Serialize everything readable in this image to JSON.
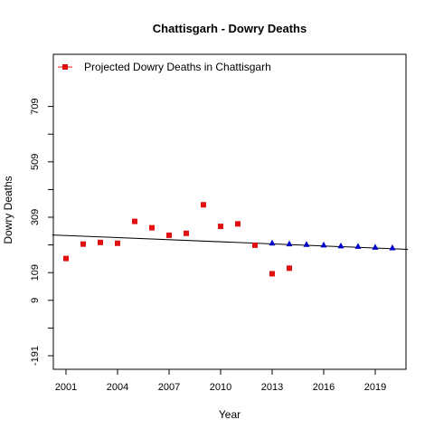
{
  "chart_data": {
    "type": "scatter",
    "title": "Chattisgarh  -  Dowry Deaths",
    "xlabel": "Year",
    "ylabel": "Dowry Deaths",
    "x_ticks": [
      2001,
      2004,
      2007,
      2010,
      2013,
      2016,
      2019
    ],
    "y_ticks": [
      -191,
      9,
      109,
      309,
      509,
      709
    ],
    "y_minor_ticks": [
      -91,
      209,
      409,
      609
    ],
    "xlim": [
      2001,
      2020
    ],
    "ylim": [
      -191,
      809
    ],
    "grid": false,
    "legend_position": "top-left",
    "series": [
      {
        "name": "Projected Dowry Deaths in Chattisgarh",
        "marker": "square",
        "color": "#e01010",
        "points": [
          {
            "x": 2001,
            "y": 160
          },
          {
            "x": 2002,
            "y": 212
          },
          {
            "x": 2003,
            "y": 218
          },
          {
            "x": 2004,
            "y": 215
          },
          {
            "x": 2005,
            "y": 294
          },
          {
            "x": 2006,
            "y": 271
          },
          {
            "x": 2007,
            "y": 244
          },
          {
            "x": 2008,
            "y": 251
          },
          {
            "x": 2009,
            "y": 354
          },
          {
            "x": 2010,
            "y": 276
          },
          {
            "x": 2011,
            "y": 285
          },
          {
            "x": 2012,
            "y": 208
          },
          {
            "x": 2013,
            "y": 105
          },
          {
            "x": 2014,
            "y": 125
          }
        ]
      },
      {
        "marker": "triangle",
        "color": "#0000cc",
        "points": [
          {
            "x": 2013,
            "y": 215
          },
          {
            "x": 2014,
            "y": 212
          },
          {
            "x": 2015,
            "y": 210
          },
          {
            "x": 2016,
            "y": 208
          },
          {
            "x": 2017,
            "y": 205
          },
          {
            "x": 2018,
            "y": 203
          },
          {
            "x": 2019,
            "y": 200
          },
          {
            "x": 2020,
            "y": 198
          }
        ]
      }
    ],
    "trend_line": {
      "color": "#000000",
      "from": {
        "x": 2000.2,
        "y": 245
      },
      "to": {
        "x": 2020.9,
        "y": 193
      }
    }
  }
}
